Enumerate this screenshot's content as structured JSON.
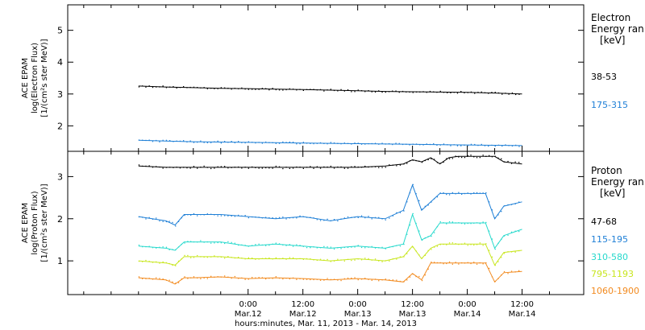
{
  "footer": {
    "xlabel": "hours:minutes, Mar. 11, 2013 - Mar. 14, 2013"
  },
  "chart_data": [
    {
      "type": "scatter",
      "panel": "electron",
      "ylabel_lines": [
        "ACE EPAM",
        "log(Electron Flux)",
        "[1/(cm²s ster MeV)]"
      ],
      "yticks": [
        2,
        3,
        4,
        5
      ],
      "ylim": [
        1.2,
        5.8
      ],
      "legend_title_lines": [
        "Electron",
        "Energy ran",
        "[keV]"
      ],
      "series": [
        {
          "name": "38-53",
          "color": "#000000",
          "x": [
            0,
            6,
            12,
            18,
            24,
            30,
            36,
            42,
            48,
            54,
            60,
            66,
            72,
            78,
            84
          ],
          "y": [
            3.25,
            3.22,
            3.2,
            3.18,
            3.17,
            3.15,
            3.14,
            3.12,
            3.1,
            3.08,
            3.07,
            3.06,
            3.05,
            3.03,
            3.0
          ]
        },
        {
          "name": "175-315",
          "color": "#1e7fd6",
          "x": [
            0,
            6,
            12,
            18,
            24,
            30,
            36,
            42,
            48,
            54,
            60,
            66,
            72,
            78,
            84
          ],
          "y": [
            1.55,
            1.52,
            1.5,
            1.49,
            1.48,
            1.47,
            1.46,
            1.45,
            1.44,
            1.43,
            1.42,
            1.41,
            1.4,
            1.39,
            1.38
          ]
        }
      ]
    },
    {
      "type": "scatter",
      "panel": "proton",
      "ylabel_lines": [
        "ACE EPAM",
        "log(Proton Flux)",
        "[1/(cm²s ster MeV)]"
      ],
      "yticks": [
        1,
        2,
        3
      ],
      "ylim": [
        0.2,
        3.6
      ],
      "legend_title_lines": [
        "Proton",
        "Energy ran",
        "[keV]"
      ],
      "series": [
        {
          "name": "47-68",
          "color": "#000000",
          "x": [
            0,
            6,
            12,
            18,
            24,
            30,
            36,
            42,
            48,
            54,
            58,
            60,
            62,
            64,
            66,
            68,
            70,
            72,
            74,
            76,
            78,
            80,
            84
          ],
          "y": [
            3.25,
            3.22,
            3.22,
            3.22,
            3.22,
            3.22,
            3.22,
            3.22,
            3.22,
            3.25,
            3.3,
            3.4,
            3.35,
            3.45,
            3.3,
            3.45,
            3.48,
            3.48,
            3.48,
            3.48,
            3.48,
            3.35,
            3.3
          ]
        },
        {
          "name": "115-195",
          "color": "#1e7fd6",
          "x": [
            0,
            6,
            8,
            10,
            12,
            18,
            24,
            30,
            36,
            42,
            48,
            54,
            58,
            60,
            62,
            64,
            66,
            68,
            70,
            72,
            74,
            76,
            78,
            80,
            84
          ],
          "y": [
            2.05,
            1.95,
            1.85,
            2.1,
            2.1,
            2.1,
            2.05,
            2.0,
            2.05,
            1.95,
            2.05,
            2.0,
            2.2,
            2.8,
            2.2,
            2.4,
            2.6,
            2.6,
            2.6,
            2.6,
            2.6,
            2.6,
            2.0,
            2.3,
            2.4
          ]
        },
        {
          "name": "310-580",
          "color": "#26d9cc",
          "x": [
            0,
            6,
            8,
            10,
            12,
            18,
            24,
            30,
            36,
            42,
            48,
            54,
            58,
            60,
            62,
            64,
            66,
            68,
            70,
            72,
            74,
            76,
            78,
            80,
            84
          ],
          "y": [
            1.35,
            1.3,
            1.25,
            1.45,
            1.45,
            1.45,
            1.35,
            1.4,
            1.35,
            1.3,
            1.35,
            1.3,
            1.4,
            2.1,
            1.5,
            1.6,
            1.9,
            1.9,
            1.9,
            1.9,
            1.9,
            1.9,
            1.3,
            1.6,
            1.75
          ]
        },
        {
          "name": "795-1193",
          "color": "#c8e61e",
          "x": [
            0,
            6,
            8,
            10,
            12,
            18,
            24,
            30,
            36,
            42,
            48,
            54,
            58,
            60,
            62,
            64,
            66,
            68,
            70,
            72,
            74,
            76,
            78,
            80,
            84
          ],
          "y": [
            1.0,
            0.95,
            0.9,
            1.1,
            1.1,
            1.1,
            1.05,
            1.05,
            1.05,
            1.0,
            1.05,
            1.0,
            1.1,
            1.35,
            1.05,
            1.3,
            1.4,
            1.4,
            1.4,
            1.4,
            1.4,
            1.4,
            0.9,
            1.2,
            1.25
          ]
        },
        {
          "name": "1060-1900",
          "color": "#f28a1e",
          "x": [
            0,
            6,
            8,
            10,
            12,
            18,
            24,
            30,
            36,
            42,
            48,
            54,
            58,
            60,
            62,
            64,
            66,
            68,
            70,
            72,
            74,
            76,
            78,
            80,
            84
          ],
          "y": [
            0.6,
            0.55,
            0.45,
            0.6,
            0.6,
            0.62,
            0.58,
            0.6,
            0.58,
            0.55,
            0.58,
            0.55,
            0.5,
            0.7,
            0.55,
            0.95,
            0.95,
            0.95,
            0.95,
            0.95,
            0.95,
            0.95,
            0.5,
            0.72,
            0.75
          ]
        }
      ]
    }
  ],
  "x_axis": {
    "x_unit": "hours since Mar. 11, 2013 00:00 (Mar. 11 midnight = 0)",
    "ticks": [
      {
        "time": "0:00",
        "date": "Mar.12"
      },
      {
        "time": "12:00",
        "date": "Mar.12"
      },
      {
        "time": "0:00",
        "date": "Mar.13"
      },
      {
        "time": "12:00",
        "date": "Mar.13"
      },
      {
        "time": "0:00",
        "date": "Mar.14"
      },
      {
        "time": "12:00",
        "date": "Mar.14"
      }
    ]
  }
}
